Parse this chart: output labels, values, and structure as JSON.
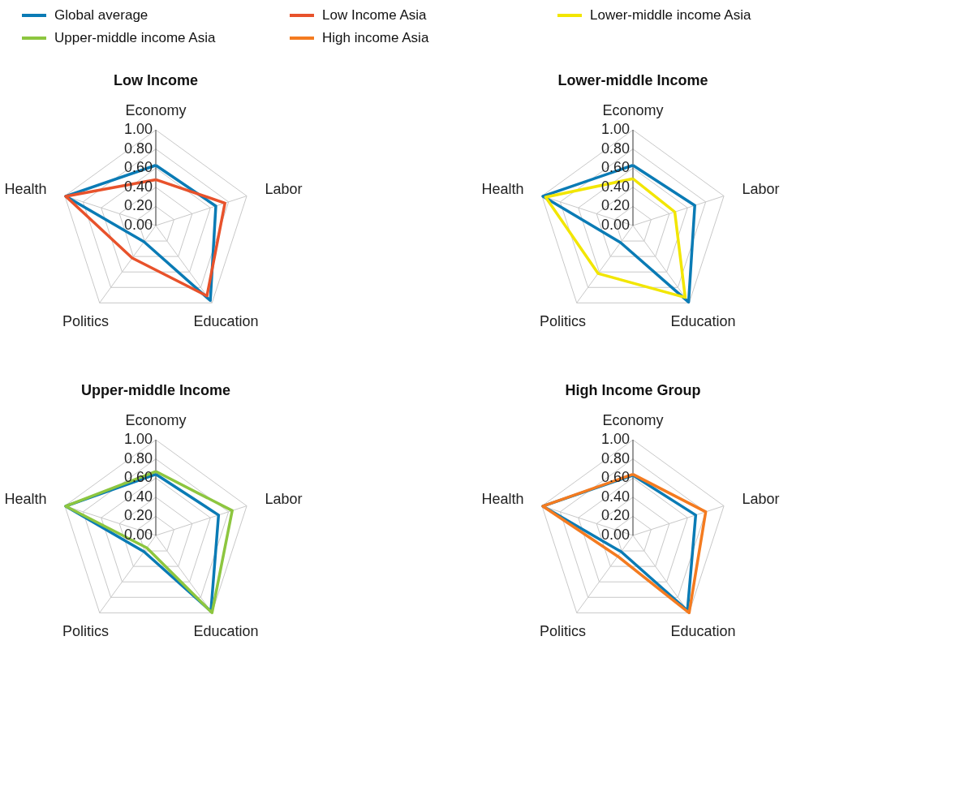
{
  "chart_data": [
    {
      "type": "radar",
      "title": "Low Income",
      "categories": [
        "Economy",
        "Labor",
        "Education",
        "Politics",
        "Health"
      ],
      "ylim": [
        0,
        1
      ],
      "yticks": [
        {
          "value": 0,
          "label": "0.00"
        },
        {
          "value": 0.2,
          "label": "0.20"
        },
        {
          "value": 0.4,
          "label": "0.40"
        },
        {
          "value": 0.6,
          "label": "0.60"
        },
        {
          "value": 0.8,
          "label": "0.80"
        },
        {
          "value": 1,
          "label": "1.00"
        }
      ],
      "legend": "top",
      "grid": true,
      "series": [
        {
          "name": "Global average",
          "color": "#0a7bb5",
          "values": [
            0.63,
            0.66,
            0.97,
            0.21,
            0.99
          ]
        },
        {
          "name": "Low Income Asia",
          "color": "#e8522b",
          "values": [
            0.48,
            0.76,
            0.91,
            0.42,
            0.99
          ]
        }
      ]
    },
    {
      "type": "radar",
      "title": "Lower-middle Income",
      "categories": [
        "Economy",
        "Labor",
        "Education",
        "Politics",
        "Health"
      ],
      "ylim": [
        0,
        1
      ],
      "yticks": [
        {
          "value": 0,
          "label": "0.00"
        },
        {
          "value": 0.2,
          "label": "0.20"
        },
        {
          "value": 0.4,
          "label": "0.40"
        },
        {
          "value": 0.6,
          "label": "0.60"
        },
        {
          "value": 0.8,
          "label": "0.80"
        },
        {
          "value": 1,
          "label": "1.00"
        }
      ],
      "grid": true,
      "series": [
        {
          "name": "Global average",
          "color": "#0a7bb5",
          "values": [
            0.63,
            0.68,
            0.99,
            0.22,
            0.99
          ]
        },
        {
          "name": "Lower-middle income Asia",
          "color": "#f2e600",
          "values": [
            0.49,
            0.46,
            0.93,
            0.62,
            0.96
          ]
        }
      ]
    },
    {
      "type": "radar",
      "title": "Upper-middle Income",
      "categories": [
        "Economy",
        "Labor",
        "Education",
        "Politics",
        "Health"
      ],
      "ylim": [
        0,
        1
      ],
      "yticks": [
        {
          "value": 0,
          "label": "0.00"
        },
        {
          "value": 0.2,
          "label": "0.20"
        },
        {
          "value": 0.4,
          "label": "0.40"
        },
        {
          "value": 0.6,
          "label": "0.60"
        },
        {
          "value": 0.8,
          "label": "0.80"
        },
        {
          "value": 1,
          "label": "1.00"
        }
      ],
      "grid": true,
      "series": [
        {
          "name": "Global average",
          "color": "#0a7bb5",
          "values": [
            0.64,
            0.69,
            0.98,
            0.21,
            0.99
          ]
        },
        {
          "name": "Upper-middle income Asia",
          "color": "#8dc63f",
          "values": [
            0.67,
            0.84,
            1.0,
            0.16,
            0.99
          ]
        }
      ]
    },
    {
      "type": "radar",
      "title": "High Income Group",
      "categories": [
        "Economy",
        "Labor",
        "Education",
        "Politics",
        "Health"
      ],
      "ylim": [
        0,
        1
      ],
      "yticks": [
        {
          "value": 0,
          "label": "0.00"
        },
        {
          "value": 0.2,
          "label": "0.20"
        },
        {
          "value": 0.4,
          "label": "0.40"
        },
        {
          "value": 0.6,
          "label": "0.60"
        },
        {
          "value": 0.8,
          "label": "0.80"
        },
        {
          "value": 1,
          "label": "1.00"
        }
      ],
      "grid": true,
      "series": [
        {
          "name": "Global average",
          "color": "#0a7bb5",
          "values": [
            0.63,
            0.69,
            0.97,
            0.21,
            0.99
          ]
        },
        {
          "name": "High income Asia",
          "color": "#f47b20",
          "values": [
            0.64,
            0.8,
            1.0,
            0.27,
            0.99
          ]
        }
      ]
    }
  ]
}
